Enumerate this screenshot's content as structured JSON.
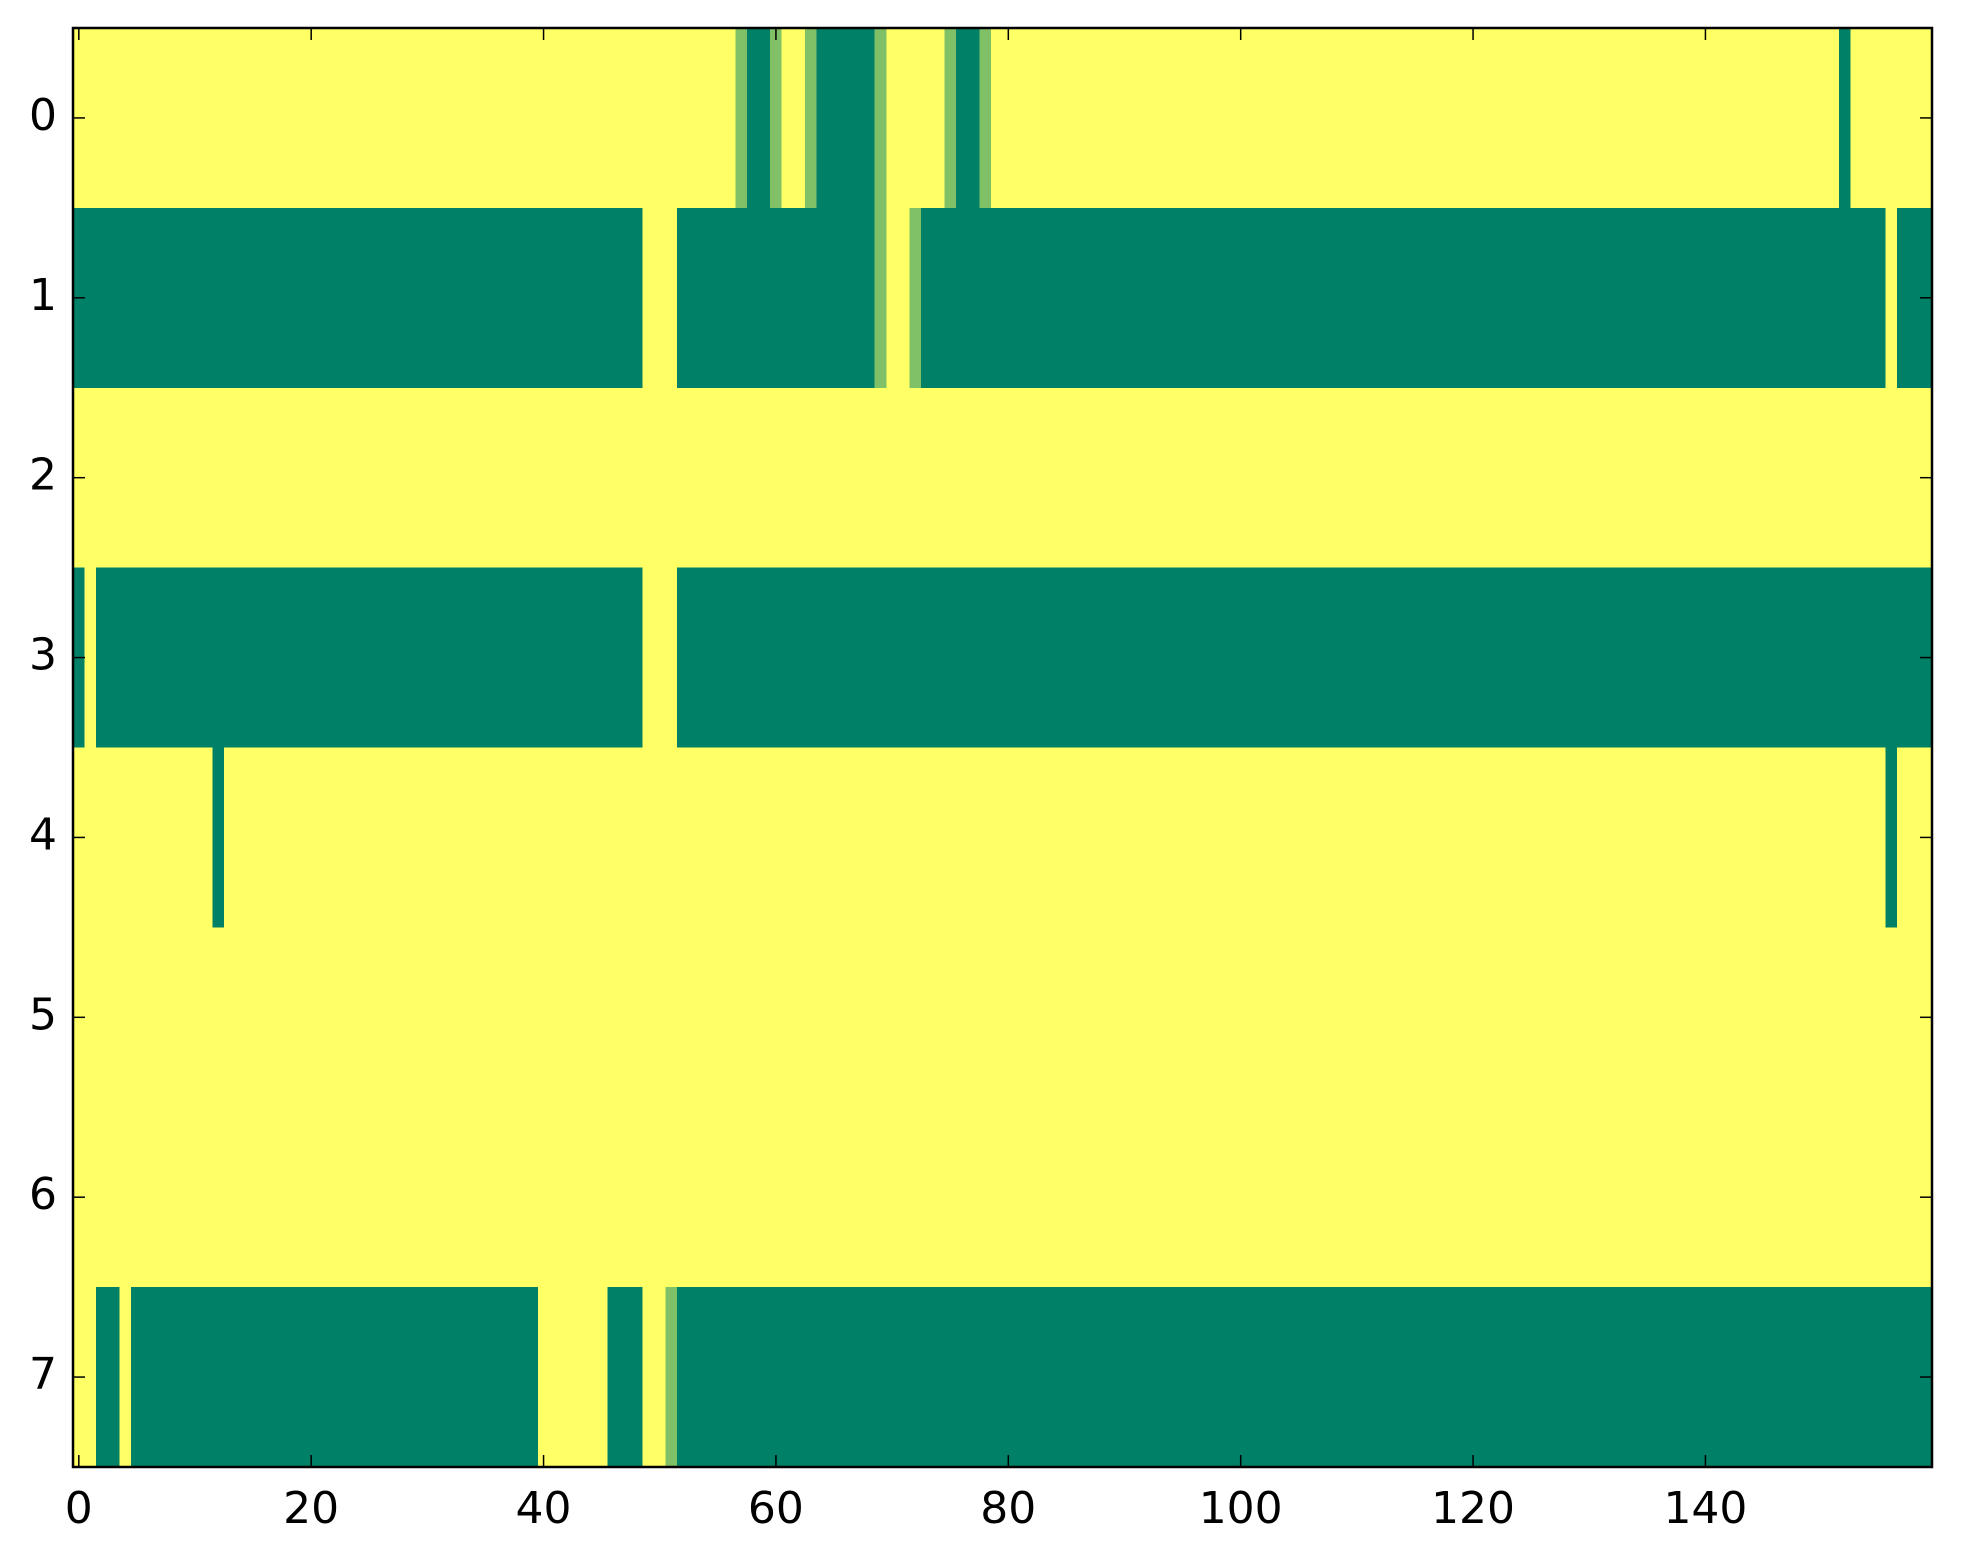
{
  "chart_data": {
    "type": "heatmap",
    "colormap": [
      "#008066",
      "#ffff66"
    ],
    "clim": [
      0,
      1
    ],
    "xlim": [
      -0.5,
      159.5
    ],
    "ylim": [
      -0.5,
      7.5
    ],
    "y_inverted": true,
    "xticks": [
      0,
      20,
      40,
      60,
      80,
      100,
      120,
      140
    ],
    "yticks": [
      0,
      1,
      2,
      3,
      4,
      5,
      6,
      7
    ],
    "values": [
      [
        1,
        1,
        1,
        1,
        1,
        1,
        1,
        1,
        1,
        1,
        1,
        1,
        1,
        1,
        1,
        1,
        1,
        1,
        1,
        1,
        1,
        1,
        1,
        1,
        1,
        1,
        1,
        1,
        1,
        1,
        1,
        1,
        1,
        1,
        1,
        1,
        1,
        1,
        1,
        1,
        1,
        1,
        1,
        1,
        1,
        1,
        1,
        1,
        1,
        1,
        1,
        1,
        1,
        1,
        1,
        1,
        1,
        0.5,
        0,
        0,
        0.5,
        1,
        1,
        0.5,
        0,
        0,
        0,
        0,
        0,
        0.5,
        1,
        1,
        1,
        1,
        1,
        0.5,
        0,
        0,
        0.5,
        1,
        1,
        1,
        1,
        1,
        1,
        1,
        1,
        1,
        1,
        1,
        1,
        1,
        1,
        1,
        1,
        1,
        1,
        1,
        1,
        1,
        1,
        1,
        1,
        1,
        1,
        1,
        1,
        1,
        1,
        1,
        1,
        1,
        1,
        1,
        1,
        1,
        1,
        1,
        1,
        1,
        1,
        1,
        1,
        1,
        1,
        1,
        1,
        1,
        1,
        1,
        1,
        1,
        1,
        1,
        1,
        1,
        1,
        1,
        1,
        1,
        1,
        1,
        1,
        1,
        1,
        1,
        1,
        1,
        1,
        1,
        1,
        1,
        0,
        1,
        1,
        1,
        1,
        1,
        1,
        1
      ],
      [
        0,
        0,
        0,
        0,
        0,
        0,
        0,
        0,
        0,
        0,
        0,
        0,
        0,
        0,
        0,
        0,
        0,
        0,
        0,
        0,
        0,
        0,
        0,
        0,
        0,
        0,
        0,
        0,
        0,
        0,
        0,
        0,
        0,
        0,
        0,
        0,
        0,
        0,
        0,
        0,
        0,
        0,
        0,
        0,
        0,
        0,
        0,
        0,
        0,
        1,
        1,
        1,
        0,
        0,
        0,
        0,
        0,
        0,
        0,
        0,
        0,
        0,
        0,
        0,
        0,
        0,
        0,
        0,
        0,
        0.5,
        1,
        1,
        0.5,
        0,
        0,
        0,
        0,
        0,
        0,
        0,
        0,
        0,
        0,
        0,
        0,
        0,
        0,
        0,
        0,
        0,
        0,
        0,
        0,
        0,
        0,
        0,
        0,
        0,
        0,
        0,
        0,
        0,
        0,
        0,
        0,
        0,
        0,
        0,
        0,
        0,
        0,
        0,
        0,
        0,
        0,
        0,
        0,
        0,
        0,
        0,
        0,
        0,
        0,
        0,
        0,
        0,
        0,
        0,
        0,
        0,
        0,
        0,
        0,
        0,
        0,
        0,
        0,
        0,
        0,
        0,
        0,
        0,
        0,
        0,
        0,
        0,
        0,
        0,
        0,
        0,
        0,
        0,
        0,
        0,
        0,
        0,
        1,
        0,
        0,
        0
      ],
      [
        1,
        1,
        1,
        1,
        1,
        1,
        1,
        1,
        1,
        1,
        1,
        1,
        1,
        1,
        1,
        1,
        1,
        1,
        1,
        1,
        1,
        1,
        1,
        1,
        1,
        1,
        1,
        1,
        1,
        1,
        1,
        1,
        1,
        1,
        1,
        1,
        1,
        1,
        1,
        1,
        1,
        1,
        1,
        1,
        1,
        1,
        1,
        1,
        1,
        1,
        1,
        1,
        1,
        1,
        1,
        1,
        1,
        1,
        1,
        1,
        1,
        1,
        1,
        1,
        1,
        1,
        1,
        1,
        1,
        1,
        1,
        1,
        1,
        1,
        1,
        1,
        1,
        1,
        1,
        1,
        1,
        1,
        1,
        1,
        1,
        1,
        1,
        1,
        1,
        1,
        1,
        1,
        1,
        1,
        1,
        1,
        1,
        1,
        1,
        1,
        1,
        1,
        1,
        1,
        1,
        1,
        1,
        1,
        1,
        1,
        1,
        1,
        1,
        1,
        1,
        1,
        1,
        1,
        1,
        1,
        1,
        1,
        1,
        1,
        1,
        1,
        1,
        1,
        1,
        1,
        1,
        1,
        1,
        1,
        1,
        1,
        1,
        1,
        1,
        1,
        1,
        1,
        1,
        1,
        1,
        1,
        1,
        1,
        1,
        1,
        1,
        1,
        1,
        1,
        1,
        1,
        1,
        1,
        1,
        1
      ],
      [
        0,
        1,
        0,
        0,
        0,
        0,
        0,
        0,
        0,
        0,
        0,
        0,
        0,
        0,
        0,
        0,
        0,
        0,
        0,
        0,
        0,
        0,
        0,
        0,
        0,
        0,
        0,
        0,
        0,
        0,
        0,
        0,
        0,
        0,
        0,
        0,
        0,
        0,
        0,
        0,
        0,
        0,
        0,
        0,
        0,
        0,
        0,
        0,
        0,
        1,
        1,
        1,
        0,
        0,
        0,
        0,
        0,
        0,
        0,
        0,
        0,
        0,
        0,
        0,
        0,
        0,
        0,
        0,
        0,
        0,
        0,
        0,
        0,
        0,
        0,
        0,
        0,
        0,
        0,
        0,
        0,
        0,
        0,
        0,
        0,
        0,
        0,
        0,
        0,
        0,
        0,
        0,
        0,
        0,
        0,
        0,
        0,
        0,
        0,
        0,
        0,
        0,
        0,
        0,
        0,
        0,
        0,
        0,
        0,
        0,
        0,
        0,
        0,
        0,
        0,
        0,
        0,
        0,
        0,
        0,
        0,
        0,
        0,
        0,
        0,
        0,
        0,
        0,
        0,
        0,
        0,
        0,
        0,
        0,
        0,
        0,
        0,
        0,
        0,
        0,
        0,
        0,
        0,
        0,
        0,
        0,
        0,
        0,
        0,
        0,
        0,
        0,
        0,
        0,
        0,
        0,
        0,
        0,
        0,
        0
      ],
      [
        1,
        1,
        1,
        1,
        1,
        1,
        1,
        1,
        1,
        1,
        1,
        1,
        0,
        1,
        1,
        1,
        1,
        1,
        1,
        1,
        1,
        1,
        1,
        1,
        1,
        1,
        1,
        1,
        1,
        1,
        1,
        1,
        1,
        1,
        1,
        1,
        1,
        1,
        1,
        1,
        1,
        1,
        1,
        1,
        1,
        1,
        1,
        1,
        1,
        1,
        1,
        1,
        1,
        1,
        1,
        1,
        1,
        1,
        1,
        1,
        1,
        1,
        1,
        1,
        1,
        1,
        1,
        1,
        1,
        1,
        1,
        1,
        1,
        1,
        1,
        1,
        1,
        1,
        1,
        1,
        1,
        1,
        1,
        1,
        1,
        1,
        1,
        1,
        1,
        1,
        1,
        1,
        1,
        1,
        1,
        1,
        1,
        1,
        1,
        1,
        1,
        1,
        1,
        1,
        1,
        1,
        1,
        1,
        1,
        1,
        1,
        1,
        1,
        1,
        1,
        1,
        1,
        1,
        1,
        1,
        1,
        1,
        1,
        1,
        1,
        1,
        1,
        1,
        1,
        1,
        1,
        1,
        1,
        1,
        1,
        1,
        1,
        1,
        1,
        1,
        1,
        1,
        1,
        1,
        1,
        1,
        1,
        1,
        1,
        1,
        1,
        1,
        1,
        1,
        1,
        1,
        0,
        1,
        1,
        1
      ],
      [
        1,
        1,
        1,
        1,
        1,
        1,
        1,
        1,
        1,
        1,
        1,
        1,
        1,
        1,
        1,
        1,
        1,
        1,
        1,
        1,
        1,
        1,
        1,
        1,
        1,
        1,
        1,
        1,
        1,
        1,
        1,
        1,
        1,
        1,
        1,
        1,
        1,
        1,
        1,
        1,
        1,
        1,
        1,
        1,
        1,
        1,
        1,
        1,
        1,
        1,
        1,
        1,
        1,
        1,
        1,
        1,
        1,
        1,
        1,
        1,
        1,
        1,
        1,
        1,
        1,
        1,
        1,
        1,
        1,
        1,
        1,
        1,
        1,
        1,
        1,
        1,
        1,
        1,
        1,
        1,
        1,
        1,
        1,
        1,
        1,
        1,
        1,
        1,
        1,
        1,
        1,
        1,
        1,
        1,
        1,
        1,
        1,
        1,
        1,
        1,
        1,
        1,
        1,
        1,
        1,
        1,
        1,
        1,
        1,
        1,
        1,
        1,
        1,
        1,
        1,
        1,
        1,
        1,
        1,
        1,
        1,
        1,
        1,
        1,
        1,
        1,
        1,
        1,
        1,
        1,
        1,
        1,
        1,
        1,
        1,
        1,
        1,
        1,
        1,
        1,
        1,
        1,
        1,
        1,
        1,
        1,
        1,
        1,
        1,
        1,
        1,
        1,
        1,
        1,
        1,
        1,
        1,
        1,
        1,
        1
      ],
      [
        1,
        1,
        1,
        1,
        1,
        1,
        1,
        1,
        1,
        1,
        1,
        1,
        1,
        1,
        1,
        1,
        1,
        1,
        1,
        1,
        1,
        1,
        1,
        1,
        1,
        1,
        1,
        1,
        1,
        1,
        1,
        1,
        1,
        1,
        1,
        1,
        1,
        1,
        1,
        1,
        1,
        1,
        1,
        1,
        1,
        1,
        1,
        1,
        1,
        1,
        1,
        1,
        1,
        1,
        1,
        1,
        1,
        1,
        1,
        1,
        1,
        1,
        1,
        1,
        1,
        1,
        1,
        1,
        1,
        1,
        1,
        1,
        1,
        1,
        1,
        1,
        1,
        1,
        1,
        1,
        1,
        1,
        1,
        1,
        1,
        1,
        1,
        1,
        1,
        1,
        1,
        1,
        1,
        1,
        1,
        1,
        1,
        1,
        1,
        1,
        1,
        1,
        1,
        1,
        1,
        1,
        1,
        1,
        1,
        1,
        1,
        1,
        1,
        1,
        1,
        1,
        1,
        1,
        1,
        1,
        1,
        1,
        1,
        1,
        1,
        1,
        1,
        1,
        1,
        1,
        1,
        1,
        1,
        1,
        1,
        1,
        1,
        1,
        1,
        1,
        1,
        1,
        1,
        1,
        1,
        1,
        1,
        1,
        1,
        1,
        1,
        1,
        1,
        1,
        1,
        1,
        1,
        1,
        1,
        1
      ],
      [
        1,
        1,
        0,
        0,
        1,
        0,
        0,
        0,
        0,
        0,
        0,
        0,
        0,
        0,
        0,
        0,
        0,
        0,
        0,
        0,
        0,
        0,
        0,
        0,
        0,
        0,
        0,
        0,
        0,
        0,
        0,
        0,
        0,
        0,
        0,
        0,
        0,
        0,
        0,
        0,
        1,
        1,
        1,
        1,
        1,
        1,
        0,
        0,
        0,
        1,
        1,
        0.5,
        0,
        0,
        0,
        0,
        0,
        0,
        0,
        0,
        0,
        0,
        0,
        0,
        0,
        0,
        0,
        0,
        0,
        0,
        0,
        0,
        0,
        0,
        0,
        0,
        0,
        0,
        0,
        0,
        0,
        0,
        0,
        0,
        0,
        0,
        0,
        0,
        0,
        0,
        0,
        0,
        0,
        0,
        0,
        0,
        0,
        0,
        0,
        0,
        0,
        0,
        0,
        0,
        0,
        0,
        0,
        0,
        0,
        0,
        0,
        0,
        0,
        0,
        0,
        0,
        0,
        0,
        0,
        0,
        0,
        0,
        0,
        0,
        0,
        0,
        0,
        0,
        0,
        0,
        0,
        0,
        0,
        0,
        0,
        0,
        0,
        0,
        0,
        0,
        0,
        0,
        0,
        0,
        0,
        0,
        0,
        0,
        0,
        0,
        0,
        0,
        0,
        0,
        0,
        0,
        0,
        0,
        0,
        0
      ]
    ]
  }
}
